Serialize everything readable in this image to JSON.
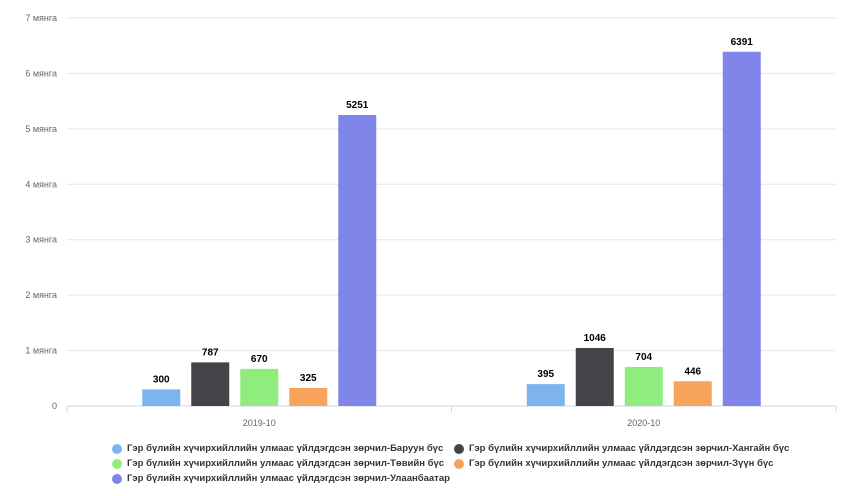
{
  "chart_data": {
    "type": "bar",
    "title": "",
    "xlabel": "",
    "ylabel": "",
    "categories": [
      "2019-10",
      "2020-10"
    ],
    "ylim": [
      0,
      7000
    ],
    "y_ticks": [
      {
        "value": 0,
        "label": "0"
      },
      {
        "value": 1000,
        "label": "1 мянга"
      },
      {
        "value": 2000,
        "label": "2 мянга"
      },
      {
        "value": 3000,
        "label": "3 мянга"
      },
      {
        "value": 4000,
        "label": "4 мянга"
      },
      {
        "value": 5000,
        "label": "5 мянга"
      },
      {
        "value": 6000,
        "label": "6 мянга"
      },
      {
        "value": 7000,
        "label": "7 мянга"
      }
    ],
    "grid": true,
    "legend_position": "bottom",
    "series": [
      {
        "name": "Гэр бүлийн хүчирхийллийн улмаас үйлдэгдсэн зөрчил-Баруун бүс",
        "color": "#7cb5ec",
        "values": [
          300,
          395
        ]
      },
      {
        "name": "Гэр бүлийн хүчирхийллийн улмаас үйлдэгдсэн зөрчил-Хангайн бүс",
        "color": "#434348",
        "values": [
          787,
          1046
        ]
      },
      {
        "name": "Гэр бүлийн хүчирхийллийн улмаас үйлдэгдсэн зөрчил-Төвийн бүс",
        "color": "#90ed7d",
        "values": [
          670,
          704
        ]
      },
      {
        "name": "Гэр бүлийн хүчирхийллийн улмаас үйлдэгдсэн зөрчил-Зүүн бүс",
        "color": "#f7a35c",
        "values": [
          325,
          446
        ]
      },
      {
        "name": "Гэр бүлийн хүчирхийллийн улмаас үйлдэгдсэн зөрчил-Улаанбаатар",
        "color": "#8085e9",
        "values": [
          5251,
          6391
        ]
      }
    ]
  }
}
